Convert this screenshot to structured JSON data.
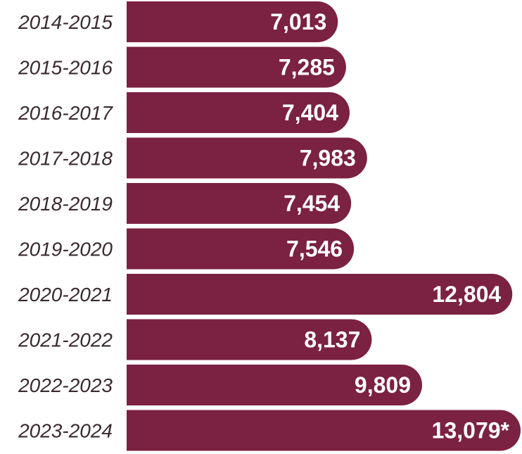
{
  "chart_data": {
    "type": "bar",
    "orientation": "horizontal",
    "title": "",
    "xlabel": "",
    "ylabel": "",
    "categories": [
      "2014-2015",
      "2015-2016",
      "2016-2017",
      "2017-2018",
      "2018-2019",
      "2019-2020",
      "2020-2021",
      "2021-2022",
      "2022-2023",
      "2023-2024"
    ],
    "values": [
      7013,
      7285,
      7404,
      7983,
      7454,
      7546,
      12804,
      8137,
      9809,
      13079
    ],
    "value_labels": [
      "7,013",
      "7,285",
      "7,404",
      "7,983",
      "7,454",
      "7,546",
      "12,804",
      "8,137",
      "9,809",
      "13,079*"
    ],
    "grid": false,
    "legend": "none",
    "bar_color": "#7b2142"
  }
}
